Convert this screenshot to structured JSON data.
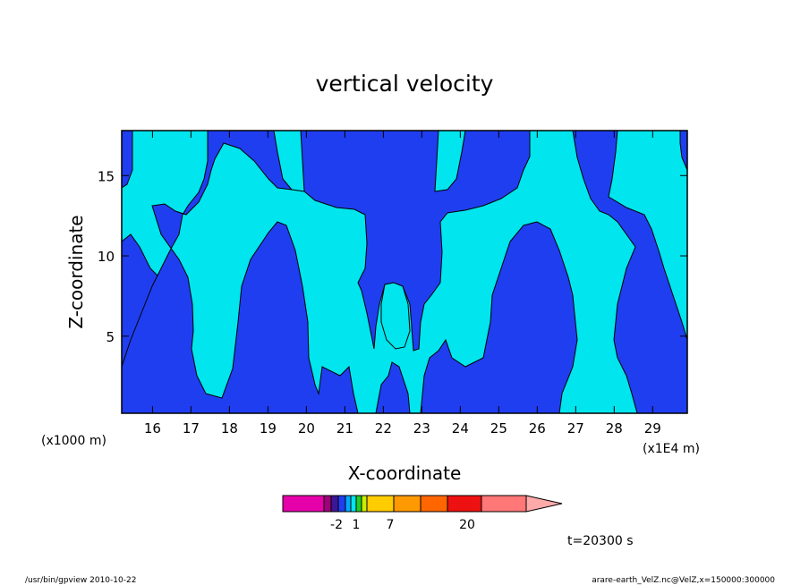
{
  "chart_data": {
    "type": "heatmap",
    "title": "vertical velocity",
    "xlabel": "X-coordinate",
    "ylabel": "Z-coordinate",
    "x_unit_left": "(x1000 m)",
    "x_unit_right": "(x1E4 m)",
    "xlim": [
      15.2,
      29.9
    ],
    "ylim": [
      0.2,
      17.8
    ],
    "x_ticks": [
      16,
      17,
      18,
      19,
      20,
      21,
      22,
      23,
      24,
      25,
      26,
      27,
      28,
      29
    ],
    "y_ticks": [
      5,
      10,
      15
    ],
    "grid": false,
    "time_label": "t=20300 s",
    "colors": {
      "dark_region": "#1f3ef0",
      "light_region": "#00e5ee",
      "outline": "#000000"
    },
    "colorbar": {
      "segments": [
        "#e600aa",
        "#a0007a",
        "#3c1696",
        "#1f3ef0",
        "#00aaff",
        "#00e5ee",
        "#22cc22",
        "#c8ee00",
        "#ffcc00",
        "#ff9900",
        "#ff6600",
        "#ee1111",
        "#ff7777"
      ],
      "extend_color": "#ffaaaa",
      "tick_labels": [
        "-2",
        "1",
        "7",
        "20"
      ]
    }
  },
  "footer": {
    "left": "/usr/bin/gpview   2010-10-22",
    "right": "arare-earth_VelZ.nc@VelZ,x=150000:300000"
  }
}
